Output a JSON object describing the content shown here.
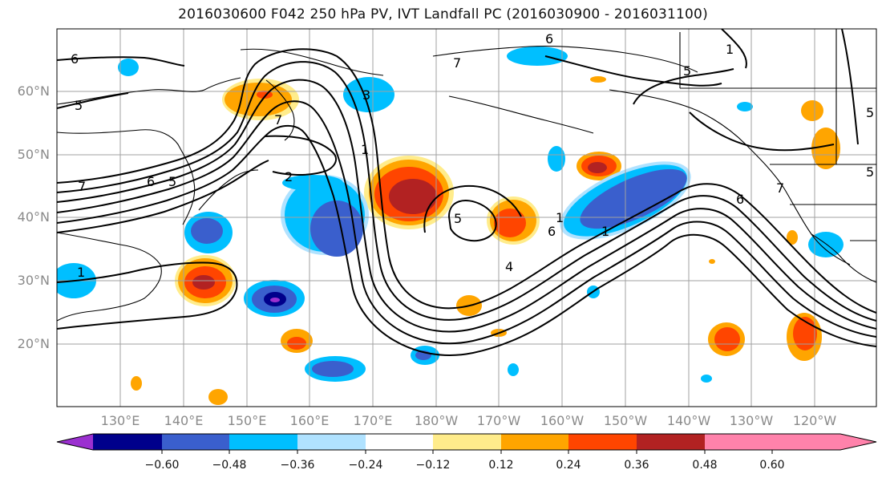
{
  "title": "2016030600 F042 250 hPa PV, IVT Landfall PC (2016030900 - 2016031100)",
  "lat_labels": [
    "60°N",
    "50°N",
    "40°N",
    "30°N",
    "20°N"
  ],
  "lon_labels": [
    "130°E",
    "140°E",
    "150°E",
    "160°E",
    "170°E",
    "180°W",
    "170°W",
    "160°W",
    "150°W",
    "140°W",
    "130°W",
    "120°W"
  ],
  "contour_labels": [
    "6",
    "5",
    "7",
    "6",
    "5",
    "7",
    "3",
    "1",
    "2",
    "1",
    "5",
    "6",
    "7",
    "4",
    "1",
    "6",
    "5",
    "1",
    "5",
    "7",
    "6",
    "5",
    "1"
  ],
  "colorbar": {
    "colors": [
      "#9b30d0",
      "#00008b",
      "#3a5fcd",
      "#00bfff",
      "#b0e2ff",
      "#ffffff",
      "#ffec8b",
      "#ffa500",
      "#ff4500",
      "#b22222",
      "#ff82ab"
    ],
    "tick_labels": [
      "−0.60",
      "−0.48",
      "−0.36",
      "−0.24",
      "−0.12",
      "0.12",
      "0.24",
      "0.36",
      "0.48",
      "0.60"
    ]
  }
}
